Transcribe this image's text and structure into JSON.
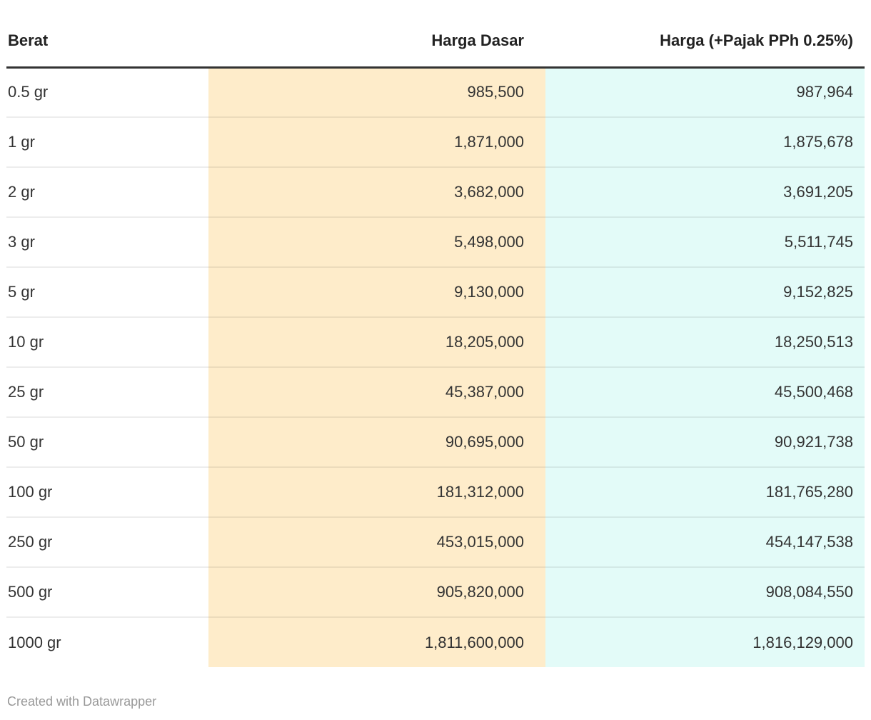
{
  "chart_data": {
    "type": "table",
    "columns": [
      "Berat",
      "Harga Dasar",
      "Harga (+Pajak PPh 0.25%)"
    ],
    "rows": [
      [
        "0.5 gr",
        "985,500",
        "987,964"
      ],
      [
        "1 gr",
        "1,871,000",
        "1,875,678"
      ],
      [
        "2 gr",
        "3,682,000",
        "3,691,205"
      ],
      [
        "3 gr",
        "5,498,000",
        "5,511,745"
      ],
      [
        "5 gr",
        "9,130,000",
        "9,152,825"
      ],
      [
        "10 gr",
        "18,205,000",
        "18,250,513"
      ],
      [
        "25 gr",
        "45,387,000",
        "45,500,468"
      ],
      [
        "50 gr",
        "90,695,000",
        "90,921,738"
      ],
      [
        "100 gr",
        "181,312,000",
        "181,765,280"
      ],
      [
        "250 gr",
        "453,015,000",
        "454,147,538"
      ],
      [
        "500 gr",
        "905,820,000",
        "908,084,550"
      ],
      [
        "1000 gr",
        "1,811,600,000",
        "1,816,129,000"
      ]
    ],
    "layout_hints": {
      "column_alignment": [
        "left",
        "right",
        "right"
      ],
      "highlighted_columns": [
        "Harga Dasar",
        "Harga (+Pajak PPh 0.25%)"
      ]
    }
  },
  "footer": {
    "attribution": "Created with Datawrapper"
  },
  "colors": {
    "base_column_bg": "#feecca",
    "tax_column_bg": "#e3fbf8",
    "header_border": "#333333",
    "body_text": "#333333",
    "header_text": "#222222",
    "footer_text": "#999999"
  }
}
